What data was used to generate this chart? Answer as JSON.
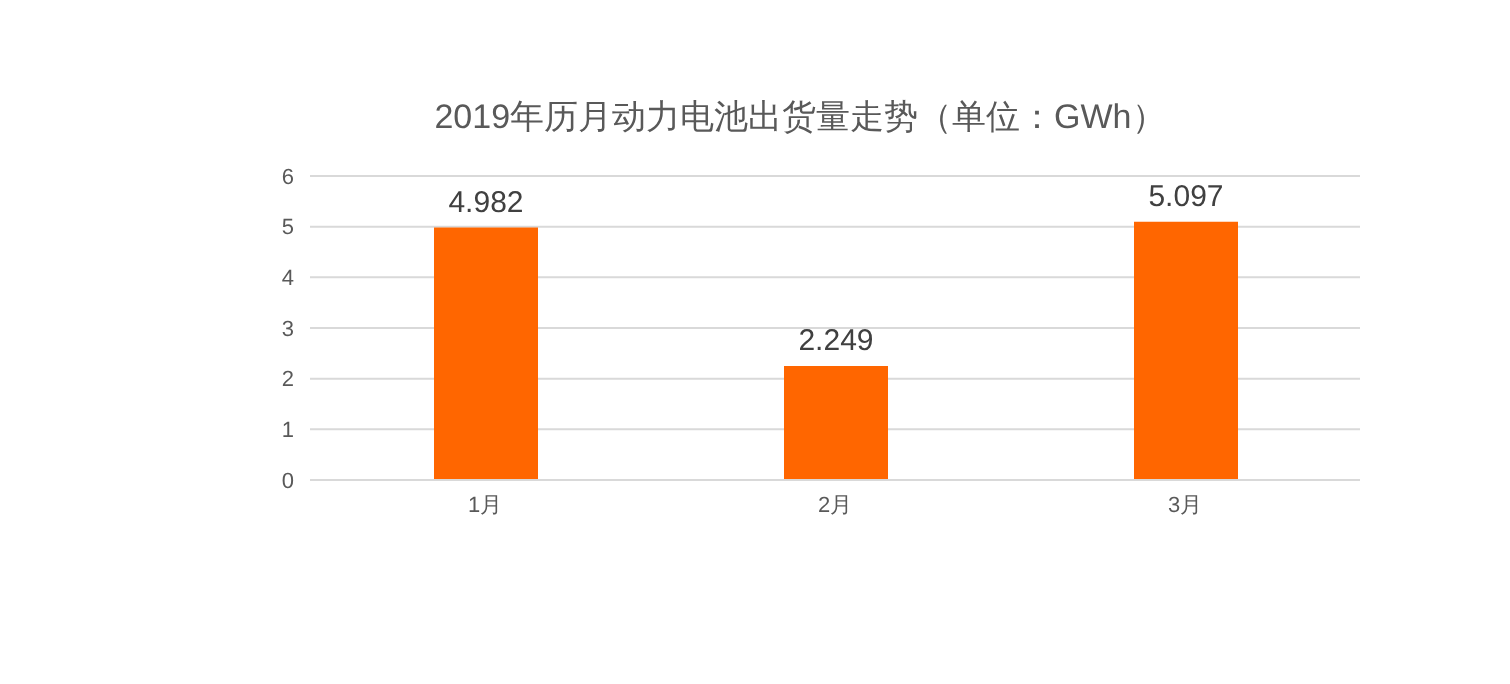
{
  "chart_data": {
    "type": "bar",
    "title": "2019年历月动力电池出货量走势（单位：GWh）",
    "categories": [
      "1月",
      "2月",
      "3月"
    ],
    "values": [
      4.982,
      2.249,
      5.097
    ],
    "color": "#ff6600",
    "ylim": [
      0,
      6
    ],
    "yticks": [
      0,
      1,
      2,
      3,
      4,
      5,
      6
    ],
    "grid": "y",
    "data_labels": true
  }
}
